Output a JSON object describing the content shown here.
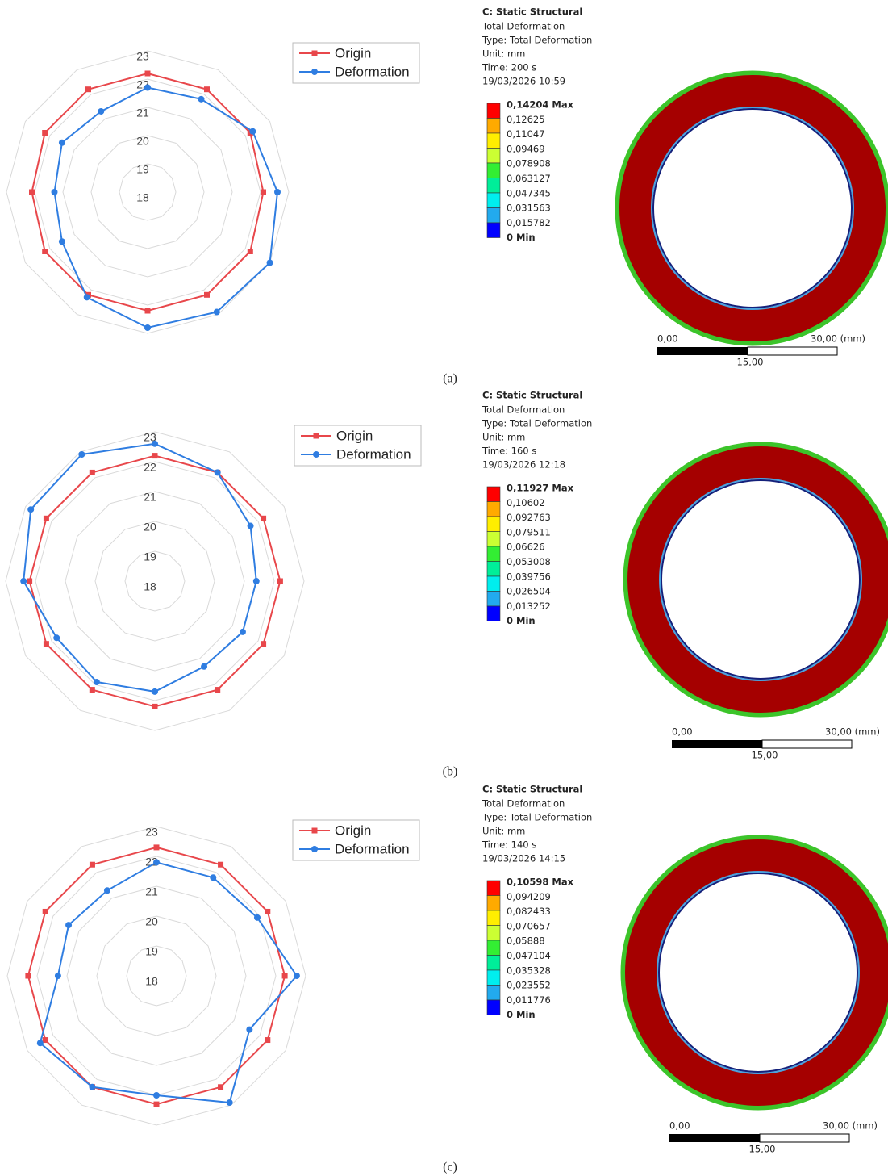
{
  "chart_data": [
    {
      "type": "radar",
      "ylim": [
        18,
        23
      ],
      "yticks": [
        18,
        19,
        20,
        21,
        22,
        23
      ],
      "grid": true,
      "legend": "upper right",
      "series": [
        {
          "name": "Origin",
          "color": "#e8474b",
          "marker": "square",
          "values": [
            22.2,
            22.2,
            22.2,
            22.1,
            22.2,
            22.2,
            22.2,
            22.2,
            22.2,
            22.1,
            22.2,
            22.2
          ]
        },
        {
          "name": "Deformation",
          "color": "#2f7de1",
          "marker": "circle",
          "values": [
            21.7,
            21.8,
            22.3,
            22.6,
            23.0,
            22.9,
            22.8,
            22.3,
            21.5,
            21.3,
            21.5,
            21.3
          ]
        }
      ]
    },
    {
      "type": "radar",
      "ylim": [
        18,
        23
      ],
      "yticks": [
        18,
        19,
        20,
        21,
        22,
        23
      ],
      "grid": true,
      "legend": "upper right",
      "series": [
        {
          "name": "Origin",
          "color": "#e8474b",
          "marker": "square",
          "values": [
            22.2,
            22.2,
            22.2,
            22.2,
            22.2,
            22.2,
            22.2,
            22.2,
            22.2,
            22.2,
            22.2,
            22.2
          ]
        },
        {
          "name": "Deformation",
          "color": "#2f7de1",
          "marker": "circle",
          "values": [
            22.6,
            22.2,
            21.7,
            21.4,
            21.4,
            21.3,
            21.7,
            21.9,
            21.8,
            22.4,
            22.8,
            22.9
          ]
        }
      ]
    },
    {
      "type": "radar",
      "ylim": [
        18,
        23
      ],
      "yticks": [
        18,
        19,
        20,
        21,
        22,
        23
      ],
      "grid": true,
      "legend": "upper right",
      "series": [
        {
          "name": "Origin",
          "color": "#e8474b",
          "marker": "square",
          "values": [
            22.3,
            22.3,
            22.3,
            22.3,
            22.3,
            22.3,
            22.3,
            22.3,
            22.3,
            22.3,
            22.3,
            22.3
          ]
        },
        {
          "name": "Deformation",
          "color": "#2f7de1",
          "marker": "circle",
          "values": [
            21.8,
            21.8,
            21.9,
            22.7,
            21.6,
            22.9,
            22.0,
            22.3,
            22.5,
            21.3,
            21.4,
            21.3
          ]
        }
      ]
    }
  ],
  "results": [
    {
      "title": "C: Static Structural",
      "lines": [
        "Total Deformation",
        "Type: Total Deformation",
        "Unit: mm",
        "Time: 200 s",
        "19/03/2026 10:59"
      ],
      "legend_labels": [
        "0,14204 Max",
        "0,12625",
        "0,11047",
        "0,09469",
        "0,078908",
        "0,063127",
        "0,047345",
        "0,031563",
        "0,015782",
        "0 Min"
      ],
      "scale": {
        "start": "0,00",
        "mid": "15,00",
        "end": "30,00 (mm)"
      }
    },
    {
      "title": "C: Static Structural",
      "lines": [
        "Total Deformation",
        "Type: Total Deformation",
        "Unit: mm",
        "Time: 160 s",
        "19/03/2026 12:18"
      ],
      "legend_labels": [
        "0,11927 Max",
        "0,10602",
        "0,092763",
        "0,079511",
        "0,06626",
        "0,053008",
        "0,039756",
        "0,026504",
        "0,013252",
        "0 Min"
      ],
      "scale": {
        "start": "0,00",
        "mid": "15,00",
        "end": "30,00 (mm)"
      }
    },
    {
      "title": "C: Static Structural",
      "lines": [
        "Total Deformation",
        "Type: Total Deformation",
        "Unit: mm",
        "Time: 140 s",
        "19/03/2026 14:15"
      ],
      "legend_labels": [
        "0,10598 Max",
        "0,094209",
        "0,082433",
        "0,070657",
        "0,05888",
        "0,047104",
        "0,035328",
        "0,023552",
        "0,011776",
        "0 Min"
      ],
      "scale": {
        "start": "0,00",
        "mid": "15,00",
        "end": "30,00 (mm)"
      }
    }
  ],
  "captions": [
    "(a)",
    "(b)",
    "(c)"
  ]
}
